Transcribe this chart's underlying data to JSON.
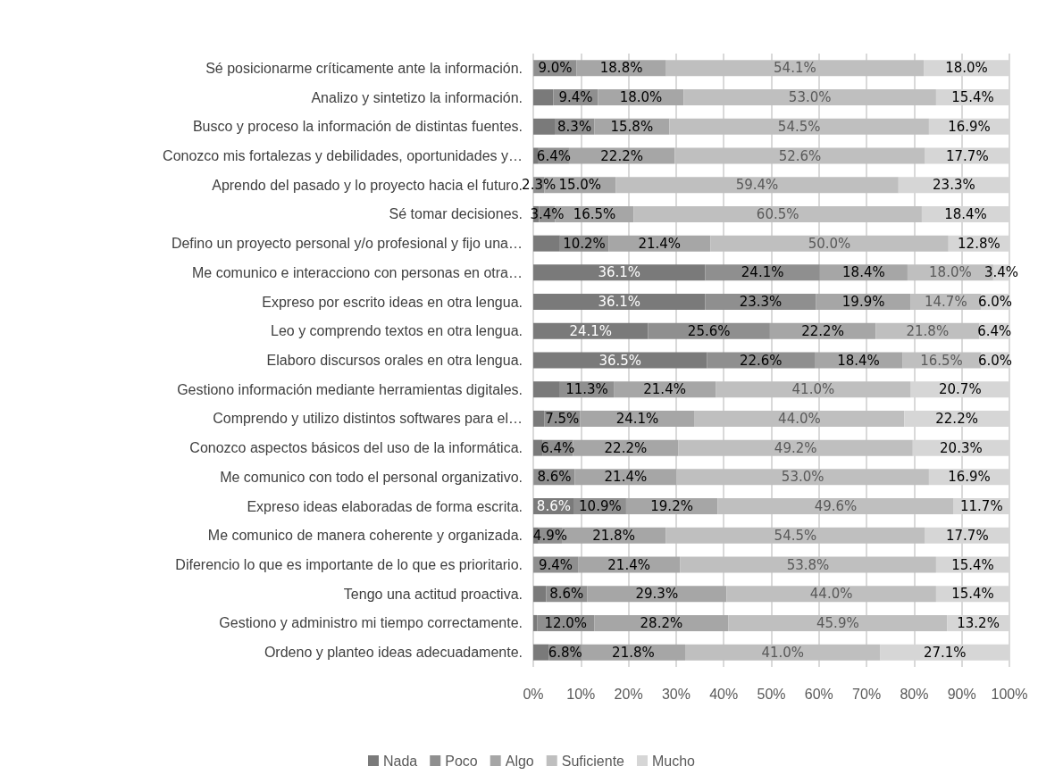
{
  "chart_data": {
    "type": "bar",
    "orientation": "horizontal",
    "stacked": true,
    "categories": [
      "Sé posicionarme críticamente ante la información.",
      "Analizo y sintetizo la información.",
      "Busco y proceso la información de distintas fuentes.",
      "Conozco mis fortalezas y debilidades, oportunidades y…",
      "Aprendo del pasado y lo proyecto hacia el futuro.",
      "Sé tomar decisiones.",
      "Defino un proyecto personal y/o profesional y fijo una…",
      "Me comunico e interacciono con personas en otra…",
      "Expreso por escrito ideas en otra lengua.",
      "Leo y comprendo textos en otra lengua.",
      "Elaboro discursos orales en otra lengua.",
      "Gestiono información mediante herramientas digitales.",
      "Comprendo y utilizo distintos softwares para el…",
      "Conozco aspectos básicos del uso de la informática.",
      "Me comunico con todo el personal organizativo.",
      "Expreso ideas elaboradas de forma escrita.",
      "Me comunico de manera coherente y organizada.",
      "Diferencio lo que es importante de lo que es prioritario.",
      "Tengo una actitud proactiva.",
      "Gestiono y administro mi tiempo correctamente.",
      "Ordeno y planteo ideas adecuadamente."
    ],
    "series": [
      {
        "name": "Nada",
        "color": "#7a7a7a",
        "values": [
          0.1,
          4.2,
          4.5,
          1.1,
          0,
          1.2,
          5.6,
          36.1,
          36.1,
          24.1,
          36.5,
          5.6,
          2.3,
          1.9,
          0.1,
          8.6,
          1.1,
          0,
          2.7,
          0.8,
          3.3
        ],
        "value_labels": [
          null,
          null,
          null,
          null,
          null,
          null,
          null,
          "36.1%",
          "36.1%",
          "24.1%",
          "36.5%",
          null,
          null,
          null,
          null,
          "8.6%",
          null,
          null,
          null,
          null,
          null
        ]
      },
      {
        "name": "Poco",
        "color": "#8f8f8f",
        "values": [
          9.0,
          9.4,
          8.3,
          6.4,
          2.3,
          3.4,
          10.2,
          24.1,
          23.3,
          25.6,
          22.6,
          11.3,
          7.5,
          6.4,
          8.6,
          10.9,
          4.9,
          9.4,
          8.6,
          12.0,
          6.8
        ],
        "value_labels": [
          "9.0%",
          "9.4%",
          "8.3%",
          "6.4%",
          "2.3%",
          "3.4%",
          "10.2%",
          "24.1%",
          "23.3%",
          "25.6%",
          "22.6%",
          "11.3%",
          "7.5%",
          "6.4%",
          "8.6%",
          "10.9%",
          "4.9%",
          "9.4%",
          "8.6%",
          "12.0%",
          "6.8%"
        ]
      },
      {
        "name": "Algo",
        "color": "#a6a6a6",
        "values": [
          18.8,
          18.0,
          15.8,
          22.2,
          15.0,
          16.5,
          21.4,
          18.4,
          19.9,
          22.2,
          18.4,
          21.4,
          24.1,
          22.2,
          21.4,
          19.2,
          21.8,
          21.4,
          29.3,
          28.2,
          21.8
        ],
        "value_labels": [
          "18.8%",
          "18.0%",
          "15.8%",
          "22.2%",
          "15.0%",
          "16.5%",
          "21.4%",
          "18.4%",
          "19.9%",
          "22.2%",
          "18.4%",
          "21.4%",
          "24.1%",
          "22.2%",
          "21.4%",
          "19.2%",
          "21.8%",
          "21.4%",
          "29.3%",
          "28.2%",
          "21.8%"
        ]
      },
      {
        "name": "Suficiente",
        "color": "#bfbfbf",
        "values": [
          54.1,
          53.0,
          54.5,
          52.6,
          59.4,
          60.5,
          50.0,
          18.0,
          14.7,
          21.8,
          16.5,
          41.0,
          44.0,
          49.2,
          53.0,
          49.6,
          54.5,
          53.8,
          44.0,
          45.9,
          41.0
        ],
        "value_labels": [
          "54.1%",
          "53.0%",
          "54.5%",
          "52.6%",
          "59.4%",
          "60.5%",
          "50.0%",
          "18.0%",
          "14.7%",
          "21.8%",
          "16.5%",
          "41.0%",
          "44.0%",
          "49.2%",
          "53.0%",
          "49.6%",
          "54.5%",
          "53.8%",
          "44.0%",
          "45.9%",
          "41.0%"
        ]
      },
      {
        "name": "Mucho",
        "color": "#d6d6d6",
        "values": [
          18.0,
          15.4,
          16.9,
          17.7,
          23.3,
          18.4,
          12.8,
          3.4,
          6.0,
          6.4,
          6.0,
          20.7,
          22.2,
          20.3,
          16.9,
          11.7,
          17.7,
          15.4,
          15.4,
          13.2,
          27.1
        ],
        "value_labels": [
          "18.0%",
          "15.4%",
          "16.9%",
          "17.7%",
          "23.3%",
          "18.4%",
          "12.8%",
          "3.4%",
          "6.0%",
          "6.4%",
          "6.0%",
          "20.7%",
          "22.2%",
          "20.3%",
          "16.9%",
          "11.7%",
          "17.7%",
          "15.4%",
          "15.4%",
          "13.2%",
          "27.1%"
        ]
      }
    ],
    "xlim": [
      0,
      100
    ],
    "xticks": [
      {
        "value": 0,
        "label": "0%"
      },
      {
        "value": 10,
        "label": "10%"
      },
      {
        "value": 20,
        "label": "20%"
      },
      {
        "value": 30,
        "label": "30%"
      },
      {
        "value": 40,
        "label": "40%"
      },
      {
        "value": 50,
        "label": "50%"
      },
      {
        "value": 60,
        "label": "60%"
      },
      {
        "value": 70,
        "label": "70%"
      },
      {
        "value": 80,
        "label": "80%"
      },
      {
        "value": 90,
        "label": "90%"
      },
      {
        "value": 100,
        "label": "100%"
      }
    ],
    "grid": "x",
    "legend": "bottom"
  }
}
